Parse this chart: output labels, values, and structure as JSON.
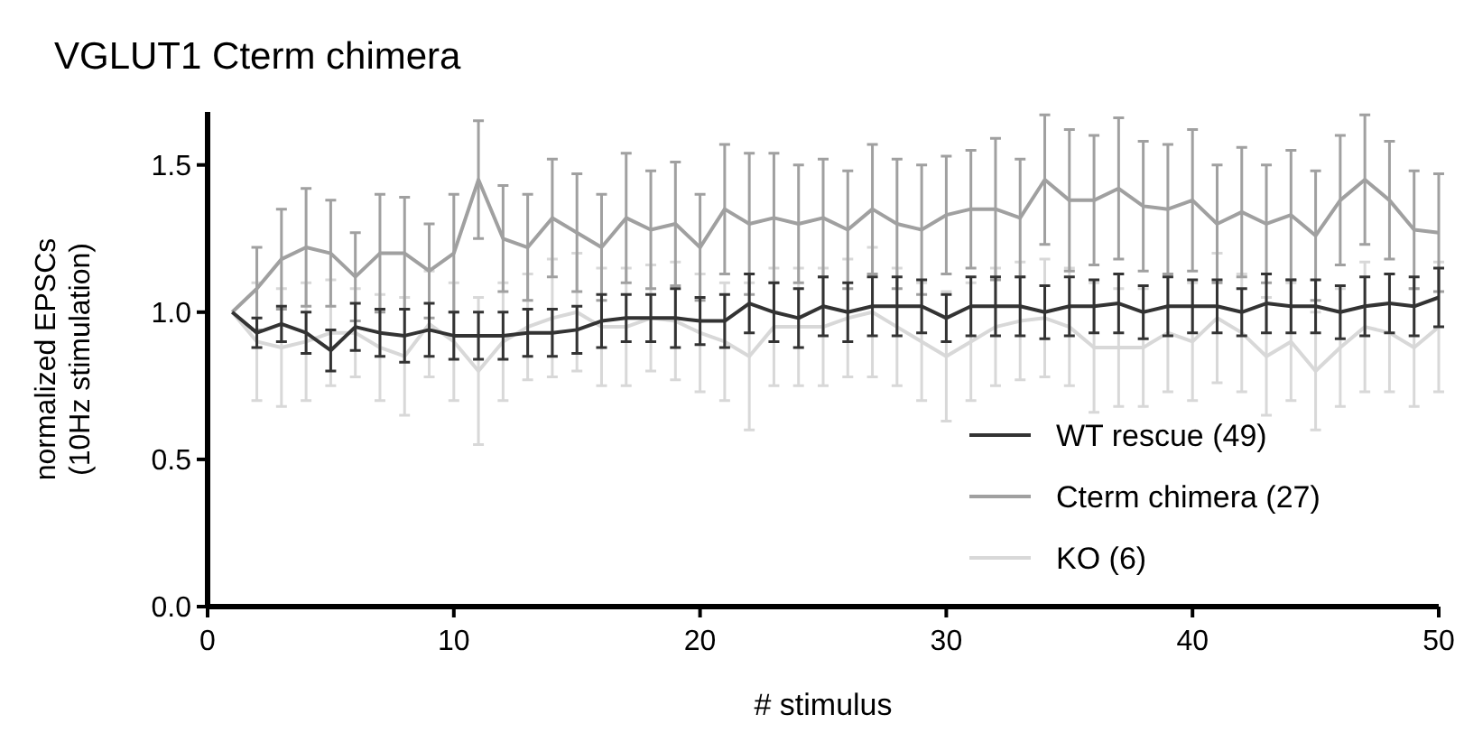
{
  "chart_data": {
    "type": "line",
    "title": "VGLUT1 Cterm chimera",
    "xlabel": "# stimulus",
    "ylabel": "normalized EPSCs\n(10Hz stimulation)",
    "x": [
      1,
      2,
      3,
      4,
      5,
      6,
      7,
      8,
      9,
      10,
      11,
      12,
      13,
      14,
      15,
      16,
      17,
      18,
      19,
      20,
      21,
      22,
      23,
      24,
      25,
      26,
      27,
      28,
      29,
      30,
      31,
      32,
      33,
      34,
      35,
      36,
      37,
      38,
      39,
      40,
      41,
      42,
      43,
      44,
      45,
      46,
      47,
      48,
      49,
      50
    ],
    "xlim": [
      0,
      50
    ],
    "xticks": [
      0,
      10,
      20,
      30,
      40,
      50
    ],
    "ylim": [
      0,
      1.68
    ],
    "yticks": [
      {
        "value": 0,
        "label": "0.0"
      },
      {
        "value": 0.5,
        "label": "0.5"
      },
      {
        "value": 1,
        "label": "1.0"
      },
      {
        "value": 1.5,
        "label": "1.5"
      }
    ],
    "legend": "bottom right",
    "marker": "none",
    "line_style": "solid",
    "grid": false,
    "series": [
      {
        "name": "WT rescue  (49)",
        "color": "#333333",
        "values": [
          1.0,
          0.93,
          0.96,
          0.93,
          0.87,
          0.95,
          0.93,
          0.92,
          0.94,
          0.92,
          0.92,
          0.92,
          0.93,
          0.93,
          0.94,
          0.97,
          0.98,
          0.98,
          0.98,
          0.97,
          0.97,
          1.03,
          1.0,
          0.98,
          1.02,
          1.0,
          1.02,
          1.02,
          1.02,
          0.98,
          1.02,
          1.02,
          1.02,
          1.0,
          1.02,
          1.02,
          1.03,
          1.0,
          1.02,
          1.02,
          1.02,
          1.0,
          1.03,
          1.02,
          1.02,
          1.0,
          1.02,
          1.03,
          1.02,
          1.05
        ],
        "errors": [
          null,
          0.05,
          0.06,
          0.07,
          0.07,
          0.08,
          0.08,
          0.09,
          0.09,
          0.08,
          0.08,
          0.08,
          0.08,
          0.08,
          0.08,
          0.09,
          0.08,
          0.08,
          0.1,
          0.08,
          0.09,
          0.1,
          0.1,
          0.1,
          0.1,
          0.1,
          0.1,
          0.1,
          0.09,
          0.08,
          0.1,
          0.1,
          0.1,
          0.09,
          0.1,
          0.09,
          0.1,
          0.09,
          0.1,
          0.09,
          0.09,
          0.08,
          0.1,
          0.09,
          0.09,
          0.09,
          0.1,
          0.1,
          0.1,
          0.1
        ]
      },
      {
        "name": "Cterm chimera (27)",
        "color": "#a0a0a0",
        "values": [
          1.0,
          1.08,
          1.18,
          1.22,
          1.2,
          1.12,
          1.2,
          1.2,
          1.14,
          1.2,
          1.45,
          1.25,
          1.22,
          1.32,
          1.27,
          1.22,
          1.32,
          1.28,
          1.3,
          1.22,
          1.35,
          1.3,
          1.32,
          1.3,
          1.32,
          1.28,
          1.35,
          1.3,
          1.28,
          1.33,
          1.35,
          1.35,
          1.32,
          1.45,
          1.38,
          1.38,
          1.42,
          1.36,
          1.35,
          1.38,
          1.3,
          1.34,
          1.3,
          1.33,
          1.26,
          1.38,
          1.45,
          1.38,
          1.28,
          1.27
        ],
        "errors": [
          null,
          0.14,
          0.17,
          0.2,
          0.18,
          0.15,
          0.2,
          0.19,
          0.16,
          0.2,
          0.2,
          0.18,
          0.18,
          0.2,
          0.2,
          0.18,
          0.22,
          0.2,
          0.21,
          0.18,
          0.22,
          0.24,
          0.22,
          0.2,
          0.2,
          0.2,
          0.22,
          0.22,
          0.22,
          0.2,
          0.2,
          0.24,
          0.2,
          0.22,
          0.24,
          0.22,
          0.24,
          0.22,
          0.22,
          0.24,
          0.2,
          0.22,
          0.2,
          0.22,
          0.22,
          0.22,
          0.22,
          0.2,
          0.2,
          0.2
        ]
      },
      {
        "name": "KO (6)",
        "color": "#d8d8d8",
        "values": [
          1.0,
          0.9,
          0.88,
          0.9,
          0.93,
          0.93,
          0.88,
          0.85,
          0.96,
          0.9,
          0.8,
          0.9,
          0.95,
          0.98,
          1.0,
          0.95,
          0.95,
          0.98,
          0.97,
          0.93,
          0.9,
          0.85,
          0.95,
          0.95,
          0.95,
          0.98,
          1.0,
          0.95,
          0.9,
          0.85,
          0.9,
          0.95,
          0.97,
          0.98,
          0.95,
          0.88,
          0.88,
          0.88,
          0.93,
          0.9,
          0.98,
          0.93,
          0.85,
          0.9,
          0.8,
          0.88,
          0.95,
          0.93,
          0.88,
          0.95
        ],
        "errors": [
          null,
          0.2,
          0.2,
          0.2,
          0.18,
          0.15,
          0.18,
          0.2,
          0.18,
          0.2,
          0.25,
          0.2,
          0.18,
          0.2,
          0.2,
          0.2,
          0.2,
          0.18,
          0.2,
          0.2,
          0.2,
          0.25,
          0.2,
          0.2,
          0.2,
          0.2,
          0.22,
          0.2,
          0.2,
          0.22,
          0.2,
          0.2,
          0.2,
          0.2,
          0.2,
          0.22,
          0.2,
          0.2,
          0.2,
          0.2,
          0.22,
          0.2,
          0.2,
          0.2,
          0.2,
          0.2,
          0.22,
          0.2,
          0.2,
          0.22
        ]
      }
    ]
  }
}
